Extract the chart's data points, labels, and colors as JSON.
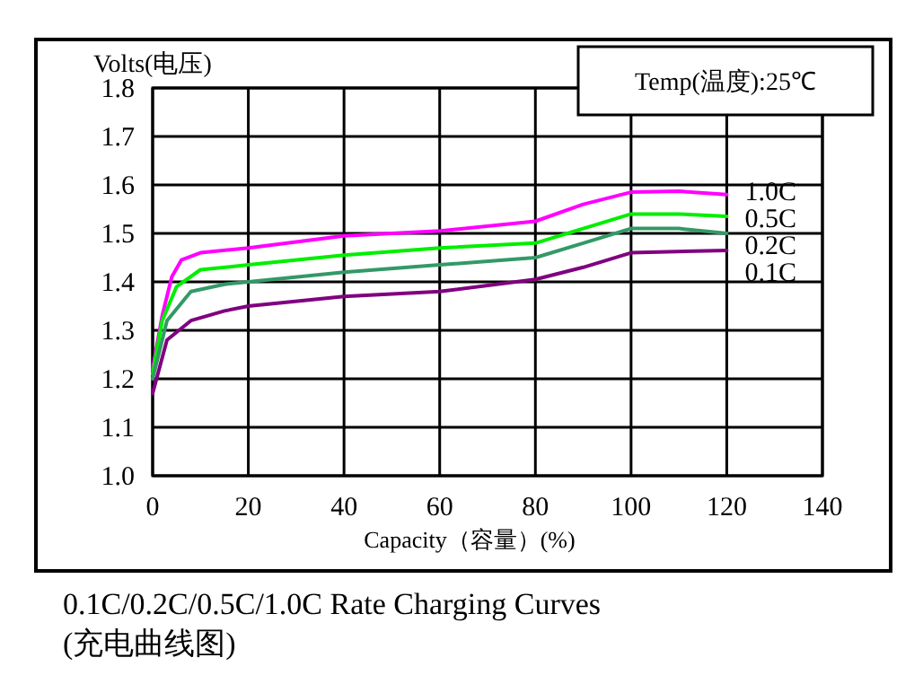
{
  "chart_data": {
    "type": "line",
    "title": "0.1C/0.2C/0.5C/1.0C Rate Charging Curves",
    "subtitle": "(充电曲线图)",
    "xlabel": "Capacity（容量）(%)",
    "ylabel": "Volts(电压)",
    "annotations": [
      "Temp(温度):25℃"
    ],
    "xlim": [
      0,
      140
    ],
    "ylim": [
      1.0,
      1.8
    ],
    "xticks": [
      0,
      20,
      40,
      60,
      80,
      100,
      120,
      140
    ],
    "yticks": [
      {
        "value": 1.0,
        "label": "1.0"
      },
      1.1,
      1.2,
      1.3,
      1.4,
      1.5,
      1.6,
      1.7,
      1.8
    ],
    "grid": true,
    "marker": "none",
    "line_style": "solid",
    "series": [
      {
        "name": "1.0C",
        "color": "#ff00ff",
        "x": [
          0,
          2,
          4,
          6,
          10,
          20,
          40,
          60,
          80,
          90,
          100,
          110,
          120
        ],
        "values": [
          1.22,
          1.33,
          1.41,
          1.445,
          1.46,
          1.47,
          1.495,
          1.505,
          1.525,
          1.56,
          1.585,
          1.587,
          1.58
        ]
      },
      {
        "name": "0.5C",
        "color": "#00ee00",
        "x": [
          0,
          2,
          5,
          10,
          20,
          40,
          60,
          80,
          90,
          100,
          110,
          120
        ],
        "values": [
          1.21,
          1.32,
          1.39,
          1.425,
          1.435,
          1.455,
          1.47,
          1.48,
          1.51,
          1.54,
          1.54,
          1.535
        ]
      },
      {
        "name": "0.2C",
        "color": "#339966",
        "x": [
          0,
          3,
          8,
          15,
          20,
          40,
          60,
          80,
          90,
          100,
          110,
          120
        ],
        "values": [
          1.2,
          1.32,
          1.38,
          1.395,
          1.4,
          1.42,
          1.435,
          1.45,
          1.48,
          1.51,
          1.51,
          1.5
        ]
      },
      {
        "name": "0.1C",
        "color": "#800080",
        "x": [
          0,
          3,
          8,
          15,
          20,
          40,
          60,
          80,
          90,
          100,
          120
        ],
        "values": [
          1.17,
          1.28,
          1.32,
          1.34,
          1.35,
          1.37,
          1.38,
          1.405,
          1.43,
          1.46,
          1.465
        ]
      }
    ]
  }
}
